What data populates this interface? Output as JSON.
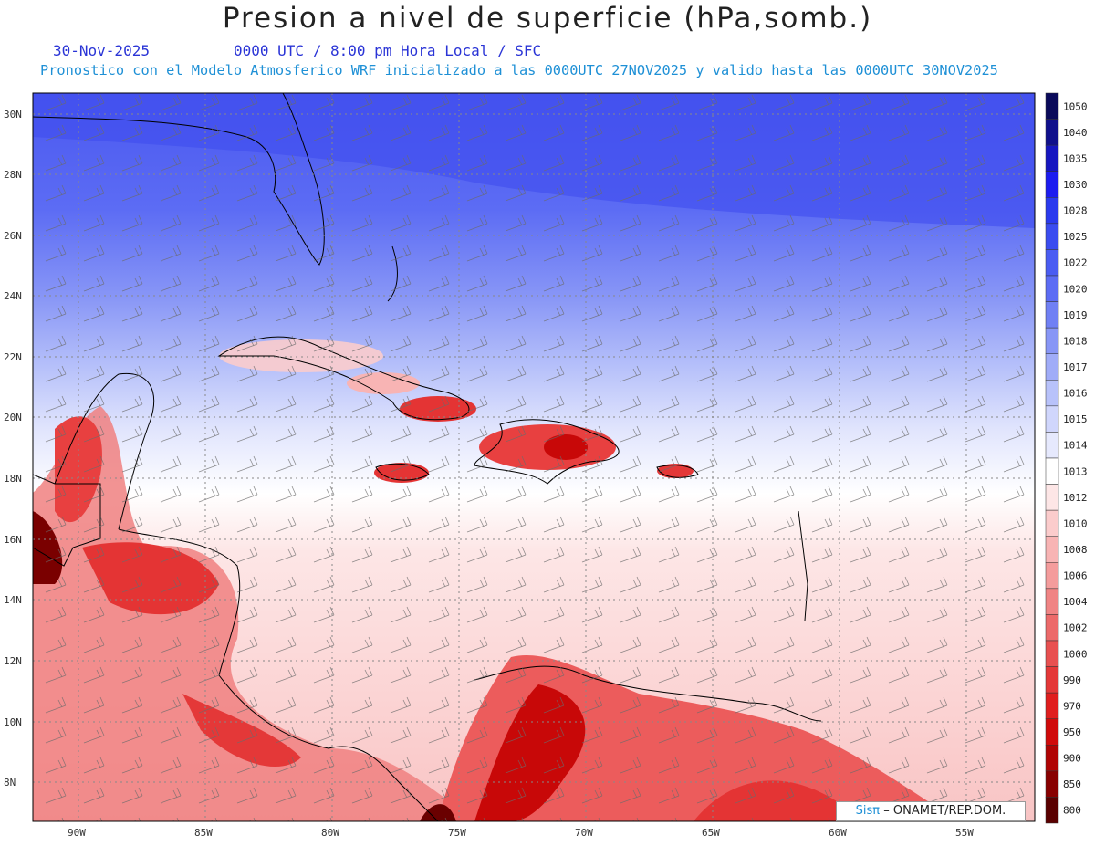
{
  "title": "Presion a nivel de superficie (hPa,somb.)",
  "date": "30-Nov-2025",
  "time_info": "0000 UTC / 8:00 pm Hora Local / SFC",
  "forecast_info": "Pronostico con el Modelo Atmosferico WRF inicializado a las 0000UTC_27NOV2025 y valido hasta las  0000UTC_30NOV2025",
  "lat_labels": [
    "30N",
    "28N",
    "26N",
    "24N",
    "22N",
    "20N",
    "18N",
    "16N",
    "14N",
    "12N",
    "10N",
    "8N"
  ],
  "lon_labels": [
    "90W",
    "85W",
    "80W",
    "75W",
    "70W",
    "65W",
    "60W",
    "55W"
  ],
  "colorbar": {
    "levels": [
      "1050",
      "1040",
      "1035",
      "1030",
      "1028",
      "1025",
      "1022",
      "1020",
      "1019",
      "1018",
      "1017",
      "1016",
      "1015",
      "1014",
      "1013",
      "1012",
      "1010",
      "1008",
      "1006",
      "1004",
      "1002",
      "1000",
      "990",
      "970",
      "950",
      "900",
      "850",
      "800"
    ],
    "colors": [
      "#0a0a5a",
      "#10108c",
      "#1616c0",
      "#1c1cf0",
      "#2a3aee",
      "#3a4cf0",
      "#4a5cf2",
      "#5c6cf4",
      "#7080f4",
      "#8896f6",
      "#a0acf8",
      "#b8c2fa",
      "#d0d6fc",
      "#e6e9fd",
      "#ffffff",
      "#fde6e6",
      "#fbcccc",
      "#f8b4b4",
      "#f49c9c",
      "#f08484",
      "#ec6a6a",
      "#e85050",
      "#e43838",
      "#e01e1e",
      "#d00a0a",
      "#b00404",
      "#880000",
      "#5a0000"
    ]
  },
  "branding": {
    "prefix": "Sisπ",
    "suffix": "– ONAMET/REP.DOM."
  }
}
